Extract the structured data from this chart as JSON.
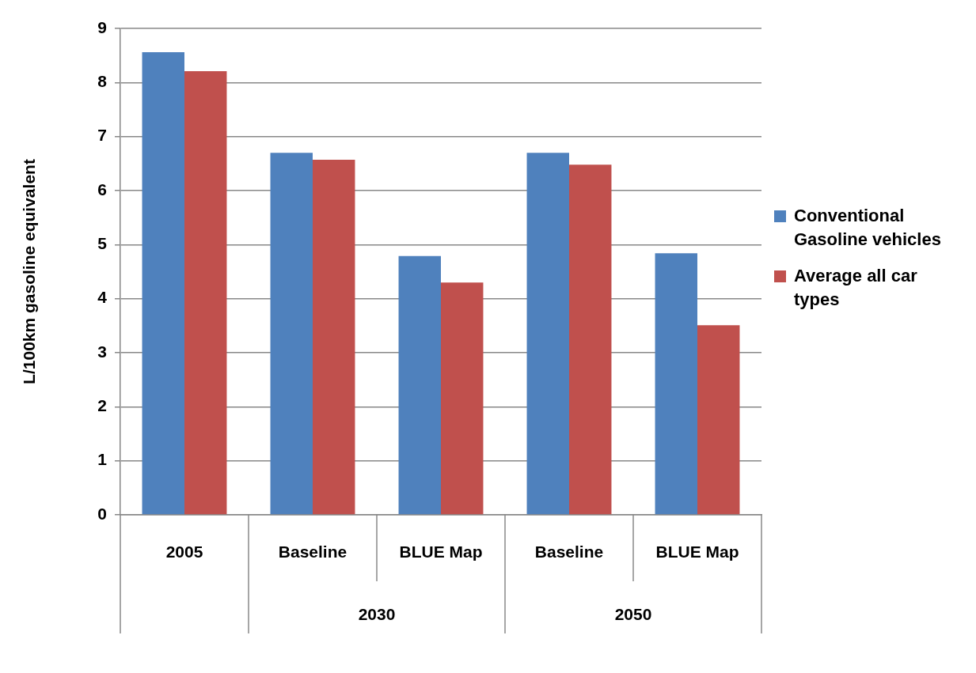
{
  "chart_data": {
    "type": "bar",
    "ylabel": "L/100km gasoline equivalent",
    "categories": [
      "2005",
      "Baseline",
      "BLUE Map",
      "Baseline",
      "BLUE Map"
    ],
    "series": [
      {
        "name": "Conventional Gasoline vehicles",
        "color": "#4f81bd",
        "values": [
          8.56,
          6.7,
          4.79,
          6.7,
          4.84
        ]
      },
      {
        "name": "Average all car types",
        "color": "#c0504d",
        "values": [
          8.21,
          6.57,
          4.3,
          6.48,
          3.51
        ]
      }
    ],
    "annotations": [
      "2030",
      "2050"
    ],
    "ylim": [
      0,
      9
    ],
    "yticks": [
      0,
      1,
      2,
      3,
      4,
      5,
      6,
      7,
      8,
      9
    ],
    "grid": "y",
    "legend": "right"
  }
}
